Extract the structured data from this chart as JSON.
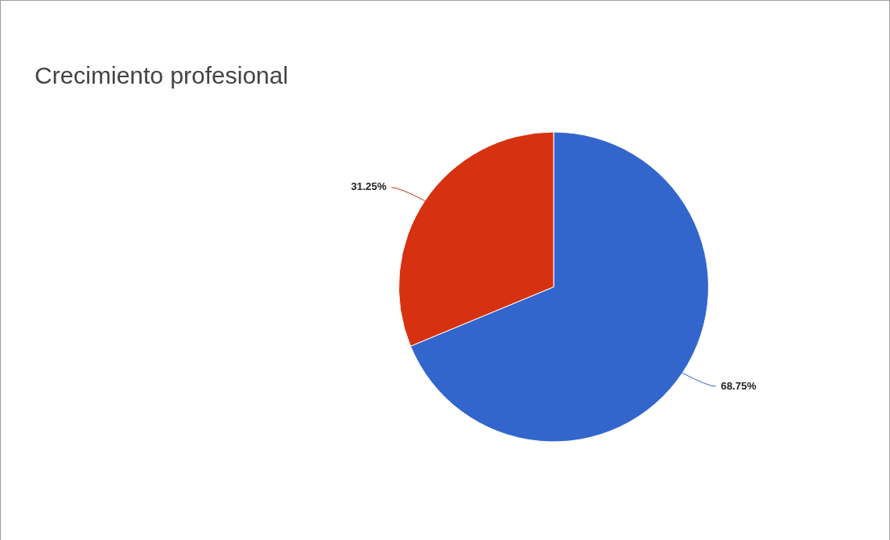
{
  "chart_data": {
    "type": "pie",
    "title": "Crecimiento profesional",
    "categories": [
      null,
      null
    ],
    "values": [
      68.75,
      31.25
    ],
    "colors": [
      "#3366cc",
      "#d63110"
    ],
    "value_labels": [
      "68.75%",
      "31.25%"
    ],
    "legend": false
  }
}
